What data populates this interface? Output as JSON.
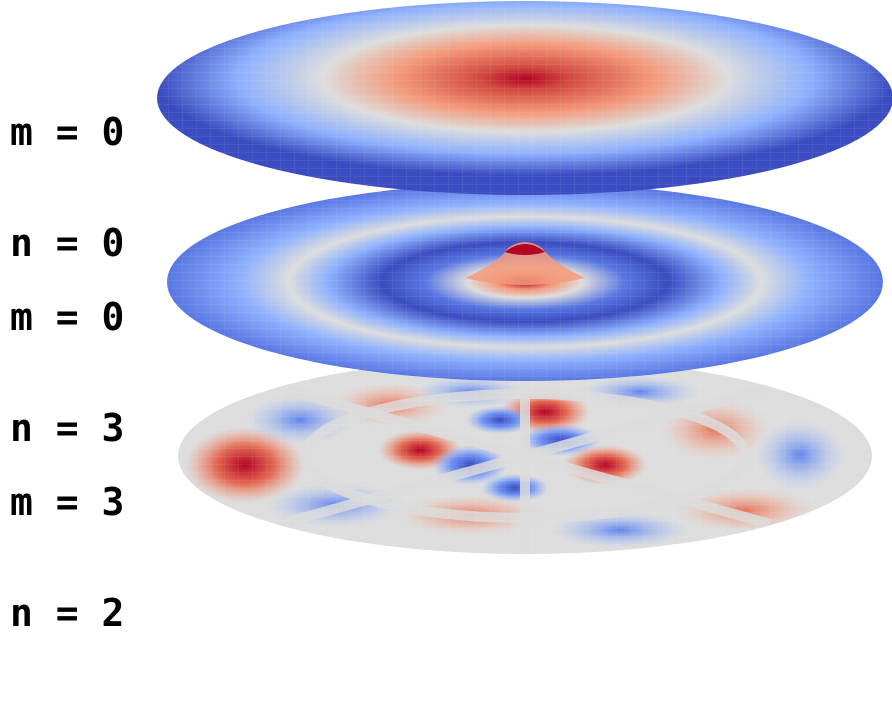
{
  "modes": [
    {
      "m_line": "m = 0",
      "n_line": "n = 0"
    },
    {
      "m_line": "m = 0",
      "n_line": "n = 3"
    },
    {
      "m_line": "m = 3",
      "n_line": "n = 2"
    }
  ],
  "colors": {
    "cold": "#3b4cc0",
    "cool": "#8db0fe",
    "neutral": "#dddddd",
    "warm": "#f49a7b",
    "hot": "#b40426"
  }
}
